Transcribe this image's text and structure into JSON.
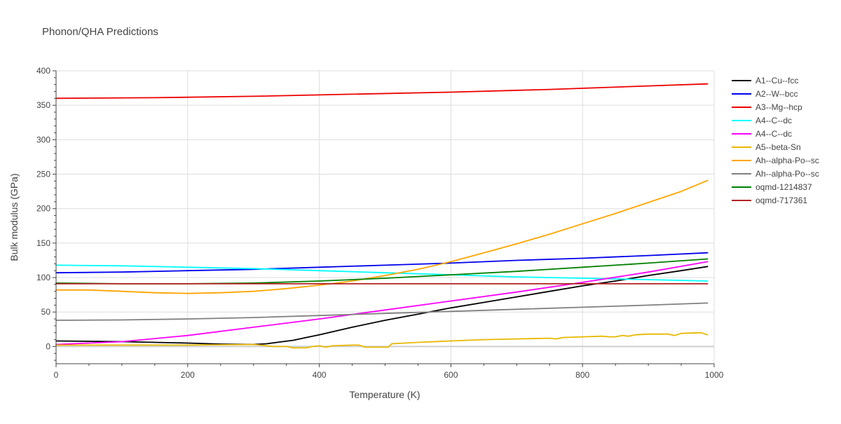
{
  "chart_data": {
    "type": "line",
    "title": "Phonon/QHA Predictions",
    "xlabel": "Temperature (K)",
    "ylabel": "Bulk modulus (GPa)",
    "xlim": [
      0,
      1000
    ],
    "ylim": [
      -25,
      400
    ],
    "xticks": [
      0,
      200,
      400,
      600,
      800,
      1000
    ],
    "yticks": [
      0,
      50,
      100,
      150,
      200,
      250,
      300,
      350,
      400
    ],
    "grid": true,
    "legend_position": "right",
    "series": [
      {
        "name": "A1--Cu--fcc",
        "color": "#000000",
        "points": [
          [
            0,
            8
          ],
          [
            100,
            7
          ],
          [
            200,
            5
          ],
          [
            250,
            3.5
          ],
          [
            300,
            3
          ],
          [
            320,
            4
          ],
          [
            340,
            6.5
          ],
          [
            360,
            9
          ],
          [
            380,
            13
          ],
          [
            400,
            17
          ],
          [
            450,
            28
          ],
          [
            500,
            38
          ],
          [
            550,
            47
          ],
          [
            600,
            56
          ],
          [
            650,
            64
          ],
          [
            700,
            72
          ],
          [
            750,
            80
          ],
          [
            800,
            88
          ],
          [
            850,
            95
          ],
          [
            900,
            103
          ],
          [
            950,
            110
          ],
          [
            990,
            116
          ]
        ]
      },
      {
        "name": "A2--W--bcc",
        "color": "#0000ee",
        "points": [
          [
            0,
            107
          ],
          [
            100,
            108
          ],
          [
            200,
            110
          ],
          [
            300,
            112
          ],
          [
            400,
            115
          ],
          [
            500,
            118
          ],
          [
            600,
            121
          ],
          [
            700,
            125
          ],
          [
            800,
            128
          ],
          [
            900,
            132
          ],
          [
            990,
            136
          ]
        ]
      },
      {
        "name": "A3--Mg--hcp",
        "color": "#ee0000",
        "points": [
          [
            0,
            360
          ],
          [
            150,
            361
          ],
          [
            300,
            363
          ],
          [
            450,
            366
          ],
          [
            600,
            369
          ],
          [
            750,
            373
          ],
          [
            900,
            378
          ],
          [
            990,
            381
          ]
        ]
      },
      {
        "name": "A4--C--dc",
        "color": "#00ffff",
        "points": [
          [
            0,
            118
          ],
          [
            100,
            117
          ],
          [
            200,
            115
          ],
          [
            300,
            113
          ],
          [
            400,
            110
          ],
          [
            500,
            107
          ],
          [
            600,
            104
          ],
          [
            700,
            101
          ],
          [
            800,
            99
          ],
          [
            900,
            97
          ],
          [
            990,
            95
          ]
        ]
      },
      {
        "name": "A4--C--dc",
        "color": "#ff00ff",
        "points": [
          [
            0,
            3
          ],
          [
            100,
            7
          ],
          [
            200,
            16
          ],
          [
            300,
            28
          ],
          [
            400,
            40
          ],
          [
            500,
            53
          ],
          [
            600,
            66
          ],
          [
            700,
            79
          ],
          [
            800,
            93
          ],
          [
            900,
            108
          ],
          [
            990,
            123
          ]
        ]
      },
      {
        "name": "A5--beta-Sn",
        "color": "#e8b800",
        "points": [
          [
            0,
            2
          ],
          [
            100,
            2
          ],
          [
            200,
            2
          ],
          [
            300,
            3
          ],
          [
            310,
            2
          ],
          [
            320,
            1
          ],
          [
            330,
            0
          ],
          [
            350,
            0
          ],
          [
            360,
            -2
          ],
          [
            370,
            -2
          ],
          [
            380,
            -2
          ],
          [
            390,
            0
          ],
          [
            400,
            1
          ],
          [
            410,
            -1
          ],
          [
            420,
            1
          ],
          [
            450,
            2
          ],
          [
            460,
            2
          ],
          [
            470,
            -1
          ],
          [
            500,
            -1
          ],
          [
            505,
            -1
          ],
          [
            510,
            4
          ],
          [
            550,
            6
          ],
          [
            600,
            8
          ],
          [
            650,
            10
          ],
          [
            700,
            11
          ],
          [
            750,
            12
          ],
          [
            760,
            11
          ],
          [
            770,
            13
          ],
          [
            800,
            14
          ],
          [
            830,
            15
          ],
          [
            840,
            14
          ],
          [
            850,
            14
          ],
          [
            860,
            16
          ],
          [
            870,
            15
          ],
          [
            880,
            17
          ],
          [
            900,
            18
          ],
          [
            930,
            18
          ],
          [
            940,
            16
          ],
          [
            950,
            19
          ],
          [
            980,
            20
          ],
          [
            990,
            17
          ]
        ]
      },
      {
        "name": "Ah--alpha-Po--sc",
        "color": "#ffa500",
        "points": [
          [
            0,
            82
          ],
          [
            50,
            82
          ],
          [
            100,
            80
          ],
          [
            150,
            78
          ],
          [
            200,
            77
          ],
          [
            250,
            78
          ],
          [
            300,
            80
          ],
          [
            350,
            84
          ],
          [
            400,
            89
          ],
          [
            450,
            95
          ],
          [
            500,
            103
          ],
          [
            550,
            112
          ],
          [
            600,
            123
          ],
          [
            650,
            136
          ],
          [
            700,
            149
          ],
          [
            750,
            163
          ],
          [
            800,
            178
          ],
          [
            850,
            193
          ],
          [
            900,
            209
          ],
          [
            950,
            225
          ],
          [
            990,
            241
          ]
        ]
      },
      {
        "name": "Ah--alpha-Po--sc",
        "color": "#808080",
        "points": [
          [
            0,
            38
          ],
          [
            100,
            38.5
          ],
          [
            200,
            40
          ],
          [
            300,
            42
          ],
          [
            400,
            45
          ],
          [
            500,
            48
          ],
          [
            600,
            51
          ],
          [
            700,
            54
          ],
          [
            800,
            57
          ],
          [
            900,
            60
          ],
          [
            990,
            63
          ]
        ]
      },
      {
        "name": "oqmd-1214837",
        "color": "#008000",
        "points": [
          [
            0,
            92
          ],
          [
            100,
            91
          ],
          [
            200,
            91
          ],
          [
            300,
            92
          ],
          [
            400,
            95
          ],
          [
            500,
            99
          ],
          [
            600,
            104
          ],
          [
            700,
            109
          ],
          [
            800,
            115
          ],
          [
            900,
            121
          ],
          [
            990,
            127
          ]
        ]
      },
      {
        "name": "oqmd-717361",
        "color": "#b22222",
        "points": [
          [
            0,
            91
          ],
          [
            200,
            91
          ],
          [
            400,
            91
          ],
          [
            600,
            91
          ],
          [
            800,
            91
          ],
          [
            990,
            91
          ]
        ]
      }
    ]
  }
}
